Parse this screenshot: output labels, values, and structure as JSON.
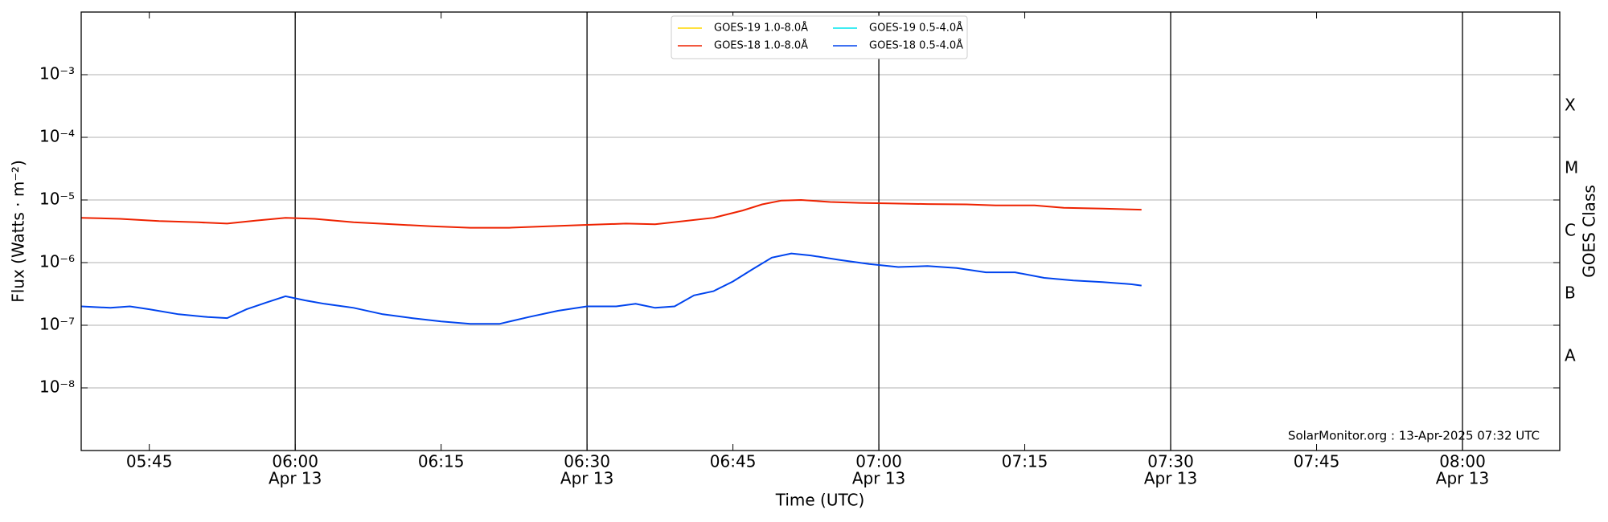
{
  "chart_data": {
    "type": "line",
    "xlabel": "Time (UTC)",
    "ylabel": "Flux (Watts · m⁻²)",
    "y2label": "GOES Class",
    "annotation": "SolarMonitor.org : 13-Apr-2025 07:32 UTC",
    "log_y": true,
    "grid": true,
    "legend": "upper center",
    "xlim": [
      "05:38",
      "08:10"
    ],
    "xticks": [
      "05:45",
      {
        "value": "06:00",
        "label": "06:00",
        "date": "Apr 13"
      },
      "06:15",
      {
        "value": "06:30",
        "label": "06:30",
        "date": "Apr 13"
      },
      "06:45",
      {
        "value": "07:00",
        "label": "07:00",
        "date": "Apr 13"
      },
      "07:15",
      {
        "value": "07:30",
        "label": "07:30",
        "date": "Apr 13"
      },
      "07:45",
      {
        "value": "08:00",
        "label": "08:00",
        "date": "Apr 13"
      }
    ],
    "vlines": [
      "06:00",
      "06:30",
      "07:00",
      "07:30",
      "08:00"
    ],
    "ylim": [
      1e-09,
      0.01
    ],
    "yticks": [
      {
        "value": 1e-08,
        "label": "10⁻⁸"
      },
      {
        "value": 1e-07,
        "label": "10⁻⁷"
      },
      {
        "value": 1e-06,
        "label": "10⁻⁶"
      },
      {
        "value": 1e-05,
        "label": "10⁻⁵"
      },
      {
        "value": 0.0001,
        "label": "10⁻⁴"
      },
      {
        "value": 0.001,
        "label": "10⁻³"
      }
    ],
    "y2lim": [
      1e-09,
      0.01
    ],
    "y2ticks": [
      {
        "value": 3.16e-08,
        "label": "A"
      },
      {
        "value": 3.16e-07,
        "label": "B"
      },
      {
        "value": 3.16e-06,
        "label": "C"
      },
      {
        "value": 3.16e-05,
        "label": "M"
      },
      {
        "value": 0.000316,
        "label": "X"
      }
    ],
    "series": [
      {
        "name": "GOES-19 1.0-8.0Å",
        "color": "#ffd700",
        "x": [],
        "values": []
      },
      {
        "name": "GOES-18 1.0-8.0Å",
        "color": "#ee2200",
        "x": [
          "05:38",
          "05:42",
          "05:46",
          "05:50",
          "05:53",
          "05:56",
          "05:59",
          "06:02",
          "06:06",
          "06:10",
          "06:14",
          "06:18",
          "06:22",
          "06:26",
          "06:30",
          "06:34",
          "06:37",
          "06:40",
          "06:43",
          "06:46",
          "06:48",
          "06:50",
          "06:52",
          "06:55",
          "06:58",
          "07:01",
          "07:05",
          "07:09",
          "07:12",
          "07:16",
          "07:19",
          "07:23",
          "07:27"
        ],
        "values": [
          5.2e-06,
          5e-06,
          4.6e-06,
          4.4e-06,
          4.2e-06,
          4.7e-06,
          5.2e-06,
          5e-06,
          4.4e-06,
          4.1e-06,
          3.8e-06,
          3.6e-06,
          3.6e-06,
          3.8e-06,
          4e-06,
          4.2e-06,
          4.1e-06,
          4.6e-06,
          5.2e-06,
          6.8e-06,
          8.5e-06,
          9.8e-06,
          1e-05,
          9.3e-06,
          9e-06,
          8.8e-06,
          8.6e-06,
          8.5e-06,
          8.2e-06,
          8.2e-06,
          7.5e-06,
          7.3e-06,
          7e-06
        ]
      },
      {
        "name": "GOES-19 0.5-4.0Å",
        "color": "#00e5ee",
        "x": [],
        "values": []
      },
      {
        "name": "GOES-18 0.5-4.0Å",
        "color": "#0044ee",
        "x": [
          "05:38",
          "05:41",
          "05:43",
          "05:45",
          "05:48",
          "05:51",
          "05:53",
          "05:55",
          "05:57",
          "05:59",
          "06:01",
          "06:03",
          "06:06",
          "06:09",
          "06:12",
          "06:15",
          "06:18",
          "06:21",
          "06:24",
          "06:27",
          "06:30",
          "06:33",
          "06:35",
          "06:37",
          "06:39",
          "06:41",
          "06:43",
          "06:45",
          "06:47",
          "06:49",
          "06:51",
          "06:53",
          "06:56",
          "06:59",
          "07:02",
          "07:05",
          "07:08",
          "07:11",
          "07:14",
          "07:17",
          "07:20",
          "07:23",
          "07:26",
          "07:27"
        ],
        "values": [
          2e-07,
          1.9e-07,
          2e-07,
          1.8e-07,
          1.5e-07,
          1.35e-07,
          1.3e-07,
          1.8e-07,
          2.3e-07,
          2.9e-07,
          2.5e-07,
          2.2e-07,
          1.9e-07,
          1.5e-07,
          1.3e-07,
          1.15e-07,
          1.05e-07,
          1.05e-07,
          1.35e-07,
          1.7e-07,
          2e-07,
          2e-07,
          2.2e-07,
          1.9e-07,
          2e-07,
          3e-07,
          3.5e-07,
          5e-07,
          7.8e-07,
          1.2e-06,
          1.4e-06,
          1.3e-06,
          1.1e-06,
          9.5e-07,
          8.5e-07,
          8.8e-07,
          8.2e-07,
          7e-07,
          7e-07,
          5.7e-07,
          5.2e-07,
          4.9e-07,
          4.5e-07,
          4.3e-07
        ]
      }
    ]
  }
}
